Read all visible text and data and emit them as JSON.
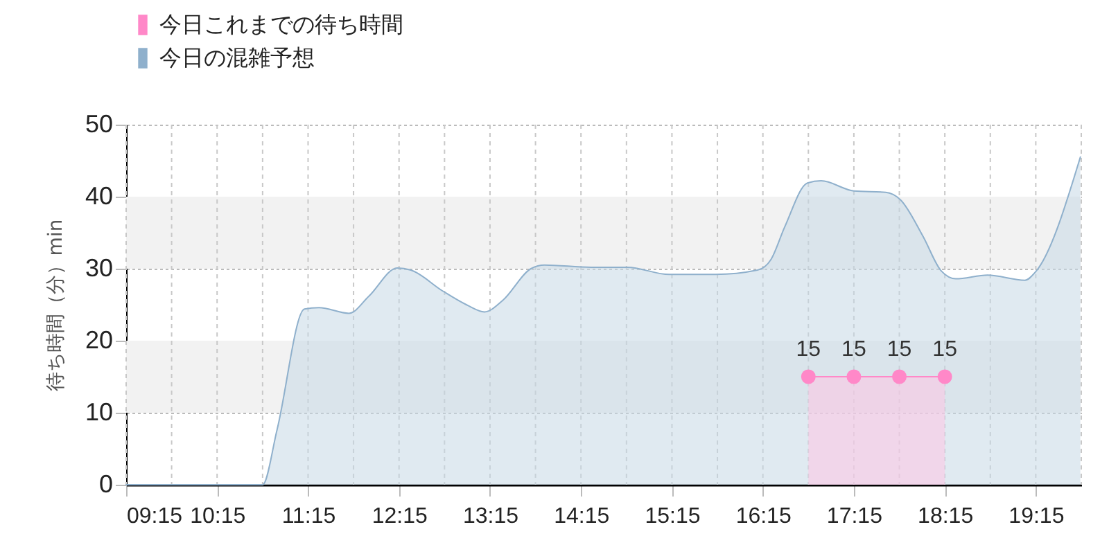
{
  "chart_data": {
    "type": "area",
    "ylabel": "待ち時間（分）min",
    "xlim": [
      9.25,
      19.75
    ],
    "ylim": [
      0,
      50
    ],
    "xticks": [
      {
        "value": 9.25,
        "label": "09:15"
      },
      {
        "value": 9.75,
        "label": null
      },
      {
        "value": 10.25,
        "label": "10:15"
      },
      {
        "value": 10.75,
        "label": null
      },
      {
        "value": 11.25,
        "label": "11:15"
      },
      {
        "value": 11.75,
        "label": null
      },
      {
        "value": 12.25,
        "label": "12:15"
      },
      {
        "value": 12.75,
        "label": null
      },
      {
        "value": 13.25,
        "label": "13:15"
      },
      {
        "value": 13.75,
        "label": null
      },
      {
        "value": 14.25,
        "label": "14:15"
      },
      {
        "value": 14.75,
        "label": null
      },
      {
        "value": 15.25,
        "label": "15:15"
      },
      {
        "value": 15.75,
        "label": null
      },
      {
        "value": 16.25,
        "label": "16:15"
      },
      {
        "value": 16.75,
        "label": null
      },
      {
        "value": 17.25,
        "label": "17:15"
      },
      {
        "value": 17.75,
        "label": null
      },
      {
        "value": 18.25,
        "label": "18:15"
      },
      {
        "value": 18.75,
        "label": null
      },
      {
        "value": 19.25,
        "label": "19:15"
      },
      {
        "value": 19.75,
        "label": null
      }
    ],
    "yticks": [
      0,
      10,
      20,
      30,
      40,
      50
    ],
    "grid": true,
    "legend": "top left",
    "bands": [
      {
        "axis": "y",
        "from": 10,
        "to": 20,
        "color": "#f2f2f2"
      },
      {
        "axis": "y",
        "from": 30,
        "to": 40,
        "color": "#f2f2f2"
      }
    ],
    "series": [
      {
        "name": "今日これまでの待ち時間",
        "color": "#ff88c8",
        "marker": "circle",
        "x": [
          16.75,
          17.25,
          17.75,
          18.25
        ],
        "values": [
          15,
          15,
          15,
          15
        ],
        "value_labels": [
          "15",
          "15",
          "15",
          "15"
        ]
      },
      {
        "name": "今日の混雑予想",
        "color": "#8fb0cc",
        "x": [
          9.25,
          10.25,
          10.75,
          10.91,
          11.21,
          11.37,
          11.7,
          11.92,
          12.23,
          12.38,
          12.73,
          12.99,
          13.19,
          13.39,
          13.7,
          13.85,
          14.36,
          14.76,
          15.22,
          15.73,
          16.19,
          16.34,
          16.49,
          16.74,
          16.89,
          17.25,
          17.6,
          17.76,
          18.01,
          18.21,
          18.37,
          18.72,
          19.13,
          19.25,
          19.74
        ],
        "values": [
          0,
          0,
          0,
          7.7,
          24.4,
          24.6,
          23.8,
          26.2,
          30.1,
          29.8,
          26.9,
          25,
          24,
          25.6,
          30,
          30.5,
          30.2,
          30.2,
          29.2,
          29.2,
          29.8,
          31.3,
          35.8,
          41.9,
          42.2,
          40.8,
          40.6,
          39.6,
          34.5,
          29.7,
          28.6,
          29.1,
          28.4,
          29.6,
          45.5
        ]
      }
    ]
  }
}
